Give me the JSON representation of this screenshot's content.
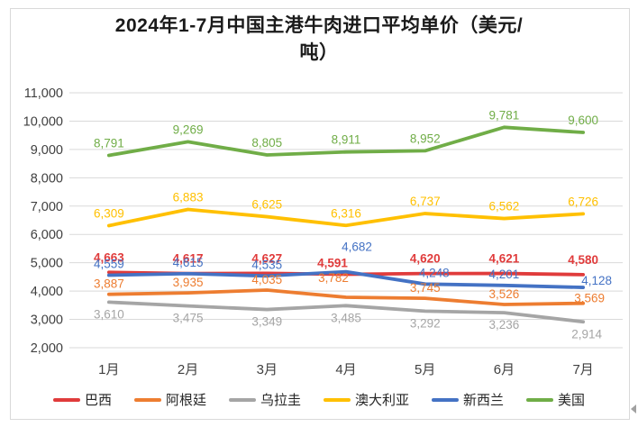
{
  "title": {
    "full": "2024年1-7月中国主港牛肉进口平均单价（美元/吨）",
    "lines": [
      "2024年1-7月中国主港牛肉进口平均单价（美元/",
      "吨）"
    ]
  },
  "chart_data": {
    "type": "line",
    "title": "2024年1-7月中国主港牛肉进口平均单价（美元/吨）",
    "categories": [
      "1月",
      "2月",
      "3月",
      "4月",
      "5月",
      "6月",
      "7月"
    ],
    "series": [
      {
        "name": "巴西",
        "color": "#E03B3B",
        "values": [
          4663,
          4617,
          4627,
          4591,
          4620,
          4621,
          4580
        ]
      },
      {
        "name": "阿根廷",
        "color": "#ED7D31",
        "values": [
          3887,
          3935,
          4035,
          3782,
          3745,
          3526,
          3569
        ]
      },
      {
        "name": "乌拉圭",
        "color": "#A5A5A5",
        "values": [
          3610,
          3475,
          3349,
          3485,
          3292,
          3236,
          2914
        ]
      },
      {
        "name": "澳大利亚",
        "color": "#FFC000",
        "values": [
          6309,
          6883,
          6625,
          6316,
          6737,
          6562,
          6726
        ]
      },
      {
        "name": "新西兰",
        "color": "#4472C4",
        "values": [
          4559,
          4615,
          4535,
          4682,
          4248,
          4201,
          4128
        ]
      },
      {
        "name": "美国",
        "color": "#70AD47",
        "values": [
          8791,
          9269,
          8805,
          8911,
          8952,
          9781,
          9600
        ]
      }
    ],
    "ylim": [
      2000,
      11000
    ],
    "ytick_step": 1000,
    "yticks": [
      "2,000",
      "3,000",
      "4,000",
      "5,000",
      "6,000",
      "7,000",
      "8,000",
      "9,000",
      "10,000",
      "11,000"
    ],
    "grid": true,
    "data_labels": true,
    "legend_position": "bottom",
    "colors_meta": {
      "gridline": "#D9D9D9",
      "frame_border": "#D9D9D9",
      "axis_text": "#404040",
      "title_text": "#1a1a1a"
    }
  }
}
